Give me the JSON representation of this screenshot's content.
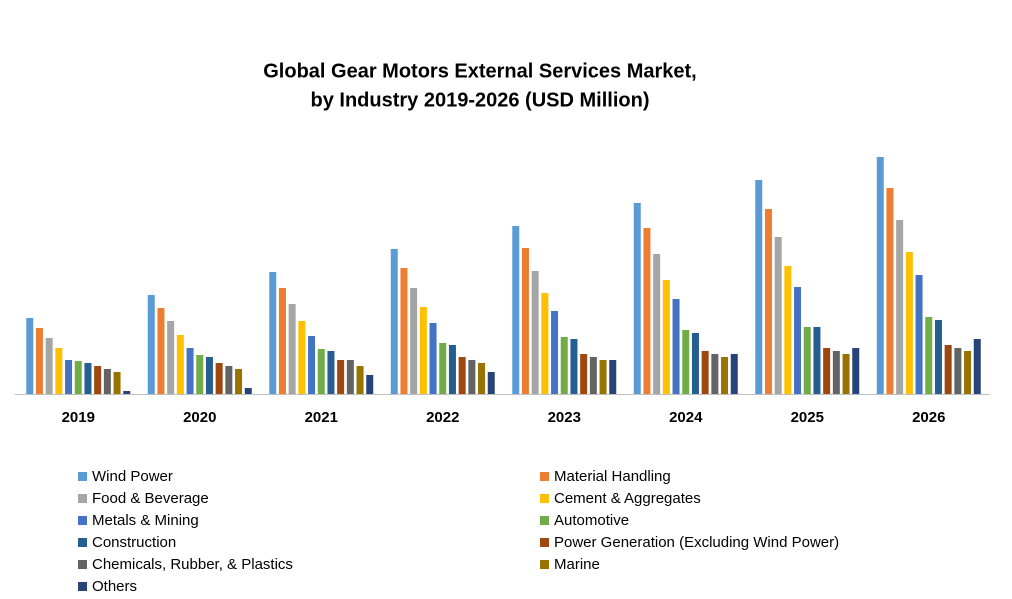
{
  "chart_data": {
    "type": "bar",
    "title": [
      "Global Gear Motors External Services Market,",
      "by Industry 2019-2026 (USD Million)"
    ],
    "categories": [
      "2019",
      "2020",
      "2021",
      "2022",
      "2023",
      "2024",
      "2025",
      "2026"
    ],
    "ylim": [
      0,
      254
    ],
    "series": [
      {
        "name": "Wind Power",
        "color": "#5b9bd5",
        "values": [
          76,
          99,
          122,
          145,
          168,
          191,
          214,
          237
        ]
      },
      {
        "name": "Material Handling",
        "color": "#ed7d31",
        "values": [
          66,
          86,
          106,
          126,
          146,
          166,
          185,
          206
        ]
      },
      {
        "name": "Food & Beverage",
        "color": "#a5a5a5",
        "values": [
          56,
          73,
          90,
          106,
          123,
          140,
          157,
          174
        ]
      },
      {
        "name": "Cement & Aggregates",
        "color": "#ffc000",
        "values": [
          46,
          59,
          73,
          87,
          101,
          114,
          128,
          142
        ]
      },
      {
        "name": "Metals & Mining",
        "color": "#4472c4",
        "values": [
          34,
          46,
          58,
          71,
          83,
          95,
          107,
          119
        ]
      },
      {
        "name": "Automotive",
        "color": "#70ad47",
        "values": [
          33,
          39,
          45,
          51,
          57,
          64,
          67,
          77
        ]
      },
      {
        "name": "Construction",
        "color": "#255e91",
        "values": [
          31,
          37,
          43,
          49,
          55,
          61,
          67,
          74
        ]
      },
      {
        "name": "Power Generation (Excluding Wind Power)",
        "color": "#9e480e",
        "values": [
          28,
          31,
          34,
          37,
          40,
          43,
          46,
          49
        ]
      },
      {
        "name": "Chemicals, Rubber, & Plastics",
        "color": "#636363",
        "values": [
          25,
          28,
          34,
          34,
          37,
          40,
          43,
          46
        ]
      },
      {
        "name": "Marine",
        "color": "#997300",
        "values": [
          22,
          25,
          28,
          31,
          34,
          37,
          40,
          43
        ]
      },
      {
        "name": "Others",
        "color": "#264478",
        "values": [
          3,
          6,
          19,
          22,
          34,
          40,
          46,
          55
        ]
      }
    ]
  }
}
